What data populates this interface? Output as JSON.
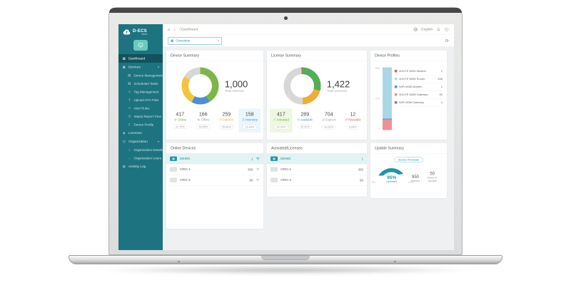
{
  "colors": {
    "sidebar_bg": "#1e7380",
    "sidebar_active": "#12525c",
    "accent_teal": "#2a97a4",
    "green": "#7ab648",
    "blue": "#4a90d6",
    "yellow": "#f4c33d",
    "gray": "#d7d7d7",
    "red": "#e05c5c",
    "light_blue": "#aad7e6",
    "pink": "#f08f98",
    "purple": "#9b6bb3"
  },
  "sidebar": {
    "logo_title": "D-ECS",
    "logo_subtitle": "cloud",
    "items": [
      {
        "label": "Dashboard"
      },
      {
        "label": "Devices"
      },
      {
        "label": "Device Management"
      },
      {
        "label": "Scheduled Tasks"
      },
      {
        "label": "Tag Management"
      },
      {
        "label": "Upload OTA Files"
      },
      {
        "label": "Alert Rules"
      },
      {
        "label": "Status Report Time"
      },
      {
        "label": "Device Profile"
      },
      {
        "label": "Licenses"
      },
      {
        "label": "Organization"
      },
      {
        "label": "Organization Details"
      },
      {
        "label": "Organization Users"
      },
      {
        "label": "Activity Log"
      }
    ]
  },
  "header": {
    "collapse": "«",
    "breadcrumb": "/ Dashboard",
    "language": "English"
  },
  "toolbar": {
    "org_select_value": "Overview"
  },
  "cards": {
    "device_summary": {
      "title": "Device Summary",
      "total": "1,000",
      "total_label": "Total Devices",
      "stats": [
        {
          "value": "417",
          "label": "Online",
          "percent": "41.70%"
        },
        {
          "value": "166",
          "label": "Offline",
          "percent": "16.60%"
        },
        {
          "value": "259",
          "label": "Inactive",
          "percent": "25.90%"
        },
        {
          "value": "158",
          "label": "Inventory",
          "percent": "15.80%"
        }
      ]
    },
    "license_summary": {
      "title": "License Summary",
      "total": "1,422",
      "total_label": "Total Licenses",
      "stats": [
        {
          "value": "417",
          "label": "Activated",
          "percent": "29.32%"
        },
        {
          "value": "289",
          "label": "Available",
          "percent": "20.32%"
        },
        {
          "value": "704",
          "label": "Expired",
          "percent": "49.51%"
        },
        {
          "value": "12",
          "label": "Reusable",
          "percent": "0.84%"
        }
      ]
    },
    "device_profiles": {
      "title": "Device Profiles",
      "axis": [
        "540",
        "270",
        "0"
      ],
      "legend": [
        {
          "name": "4G/LTE M2M Modem",
          "value": "1",
          "color": "#e05c5c"
        },
        {
          "name": "4G/LTE M2M Router",
          "value": "438",
          "color": "#aad7e6"
        },
        {
          "name": "WiFi M2M Modem",
          "value": "1",
          "color": "#4f93d8"
        },
        {
          "name": "4G/LTE M2M Gateway",
          "value": "90",
          "color": "#f08f98"
        },
        {
          "name": "WiFi M2M Gateway",
          "value": "4",
          "color": "#9b6bb3"
        }
      ]
    },
    "online_devices": {
      "title": "Online Devices",
      "rows": [
        {
          "name": "DEMO",
          "value": "1"
        },
        {
          "name": "ORG-1",
          "value": "300"
        },
        {
          "name": "ORG-2",
          "value": "80"
        }
      ]
    },
    "activated_licenses": {
      "title": "Activated/Licenses",
      "rows": [
        {
          "name": "DEMO",
          "value": "1"
        },
        {
          "name": "ORG-1",
          "value": "300"
        },
        {
          "name": "ORG-2",
          "value": "99"
        }
      ]
    },
    "update_summary": {
      "title": "Update Summary",
      "badge": "Device Firmware",
      "gauge_value": "95%",
      "gauge_label": "Updated",
      "gauge_min": "0%",
      "gauge_max": "100%",
      "stats": [
        {
          "value": "950",
          "label": "Newest"
        },
        {
          "value": "50",
          "label": "Need to Update"
        }
      ]
    }
  },
  "charts": {
    "device_donut": {
      "segments": [
        {
          "color": "#7ab648",
          "pct": 41.7
        },
        {
          "color": "#4a90d6",
          "pct": 15.8
        },
        {
          "color": "#f4c33d",
          "pct": 25.9
        },
        {
          "color": "#d7d7d7",
          "pct": 16.6
        }
      ]
    },
    "license_donut": {
      "segments": [
        {
          "color": "#53ae57",
          "pct": 29.32
        },
        {
          "color": "#efad33",
          "pct": 20.32
        },
        {
          "color": "#d7d7d7",
          "pct": 49.52
        },
        {
          "color": "#e05c5c",
          "pct": 0.84
        }
      ]
    },
    "profile_bar": {
      "max": 540,
      "segments": [
        {
          "color": "#f08f98",
          "value": 90
        },
        {
          "color": "#e05c5c",
          "value": 1
        },
        {
          "color": "#9b6bb3",
          "value": 4
        },
        {
          "color": "#4f93d8",
          "value": 1
        },
        {
          "color": "#aad7e6",
          "value": 438
        }
      ]
    },
    "gauge": {
      "pct": 95,
      "color": "#1f96a6",
      "track": "#e6e8ea"
    }
  },
  "chart_data": [
    {
      "type": "pie",
      "title": "Device Summary",
      "labels": [
        "Online",
        "Offline",
        "Inactive",
        "Inventory"
      ],
      "values": [
        417,
        166,
        259,
        158
      ],
      "total_label": "Total Devices",
      "total": 1000
    },
    {
      "type": "pie",
      "title": "License Summary",
      "labels": [
        "Activated",
        "Available",
        "Expired",
        "Reusable"
      ],
      "values": [
        417,
        289,
        704,
        12
      ],
      "total_label": "Total Licenses",
      "total": 1422
    },
    {
      "type": "bar",
      "title": "Device Profiles",
      "categories": [
        "4G/LTE M2M Modem",
        "4G/LTE M2M Router",
        "WiFi M2M Modem",
        "4G/LTE M2M Gateway",
        "WiFi M2M Gateway"
      ],
      "values": [
        1,
        438,
        1,
        90,
        4
      ],
      "ylim": [
        0,
        540
      ],
      "stacked": true,
      "legend_position": "right"
    },
    {
      "type": "pie",
      "title": "Update Summary (gauge)",
      "labels": [
        "Updated",
        "Remaining"
      ],
      "values": [
        95,
        5
      ],
      "annotations": [
        "Device Firmware",
        "950 Newest",
        "50 Need to Update"
      ]
    }
  ]
}
